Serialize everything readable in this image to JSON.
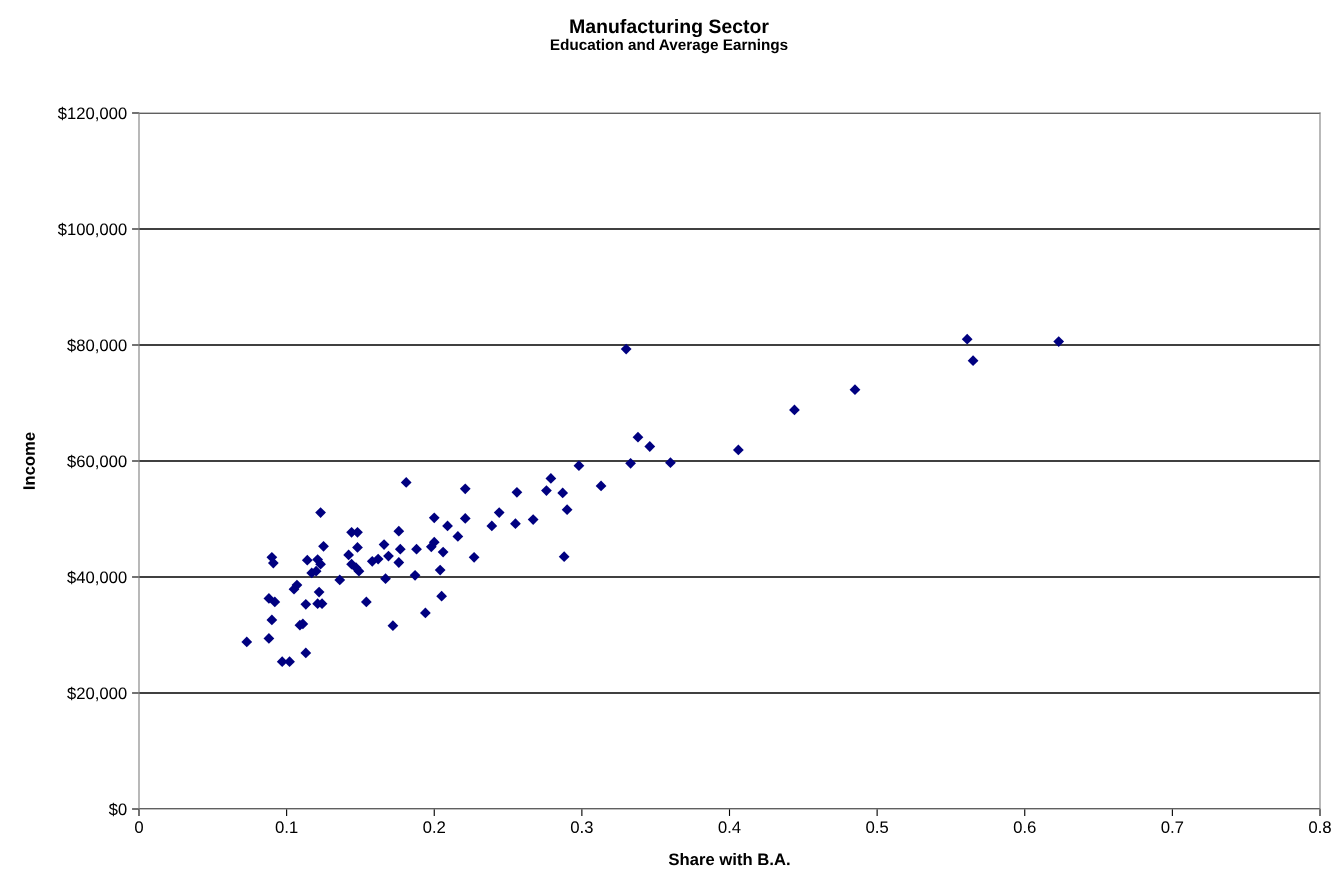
{
  "chart_data": {
    "type": "scatter",
    "title": "Manufacturing Sector",
    "subtitle": "Education and Average Earnings",
    "xlabel": "Share with B.A.",
    "ylabel": "Income",
    "x": [
      0.073,
      0.088,
      0.088,
      0.09,
      0.09,
      0.091,
      0.092,
      0.097,
      0.102,
      0.105,
      0.107,
      0.109,
      0.111,
      0.113,
      0.113,
      0.114,
      0.117,
      0.12,
      0.121,
      0.121,
      0.122,
      0.123,
      0.124,
      0.123,
      0.125,
      0.136,
      0.142,
      0.144,
      0.144,
      0.147,
      0.148,
      0.148,
      0.149,
      0.154,
      0.158,
      0.162,
      0.166,
      0.167,
      0.169,
      0.172,
      0.176,
      0.176,
      0.177,
      0.181,
      0.187,
      0.188,
      0.194,
      0.198,
      0.2,
      0.2,
      0.204,
      0.205,
      0.206,
      0.209,
      0.216,
      0.221,
      0.221,
      0.227,
      0.239,
      0.244,
      0.255,
      0.256,
      0.267,
      0.276,
      0.279,
      0.287,
      0.288,
      0.29,
      0.298,
      0.313,
      0.33,
      0.333,
      0.338,
      0.346,
      0.36,
      0.406,
      0.444,
      0.485,
      0.561,
      0.565,
      0.623
    ],
    "series": [
      {
        "color": "#000080",
        "values": [
          28800,
          36300,
          29400,
          43400,
          32600,
          42400,
          35700,
          25400,
          25400,
          37900,
          38600,
          31700,
          31900,
          26900,
          35300,
          42900,
          40700,
          41000,
          43000,
          35400,
          37400,
          42200,
          35400,
          51100,
          45300,
          39500,
          43800,
          47700,
          42200,
          41600,
          45100,
          47700,
          41000,
          35700,
          42700,
          43100,
          45600,
          39700,
          43600,
          31600,
          47900,
          42500,
          44800,
          56300,
          40300,
          44800,
          33800,
          45200,
          46000,
          50200,
          41200,
          36700,
          44300,
          48800,
          47000,
          55200,
          50100,
          43400,
          48800,
          51100,
          49200,
          54600,
          49900,
          54900,
          57000,
          54500,
          43500,
          51600,
          59200,
          55700,
          79300,
          59600,
          64100,
          62500,
          59700,
          61900,
          68800,
          72300,
          81000,
          77300,
          80600
        ]
      }
    ],
    "marker": "diamond",
    "grid": "y",
    "xlim": [
      0,
      0.8
    ],
    "xticks": [
      0,
      0.1,
      0.2,
      0.3,
      0.4,
      0.5,
      0.6,
      0.7,
      0.8
    ],
    "ylim": [
      0,
      120000
    ],
    "yticks": [
      {
        "value": 0,
        "label": "$0"
      },
      {
        "value": 20000,
        "label": "$20,000"
      },
      {
        "value": 40000,
        "label": "$40,000"
      },
      {
        "value": 60000,
        "label": "$60,000"
      },
      {
        "value": 80000,
        "label": "$80,000"
      },
      {
        "value": 100000,
        "label": "$100,000"
      },
      {
        "value": 120000,
        "label": "$120,000"
      }
    ]
  }
}
